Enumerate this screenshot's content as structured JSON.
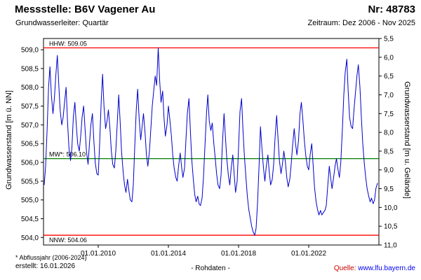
{
  "header": {
    "station_label": "Messstelle: B6V Vagener Au",
    "number_label": "Nr: 48783",
    "aquifer_label": "Grundwasserleiter: Quartär",
    "period_label": "Zeitraum: Dez 2006 - Nov 2025"
  },
  "footer": {
    "footnote": "* Abflussjahr (2006-2024)",
    "created": "erstellt: 16.01.2026",
    "data_type": "- Rohdaten -",
    "source_label": "Quelle:",
    "source_link": "www.lfu.bayern.de"
  },
  "colors": {
    "series": "#0000cc",
    "extreme_line": "#ff0000",
    "mean_line": "#008000",
    "source_label": "#cc0000",
    "link": "#0000ee"
  },
  "chart_data": {
    "type": "line",
    "title": "",
    "ylabel_left": "Grundwasserstand [m ü. NN]",
    "ylabel_right": "Grundwasserstand [m u. Gelände]",
    "x_range": [
      2006.88,
      2026.0
    ],
    "y_range": [
      503.8,
      509.3
    ],
    "x_ticks": [
      {
        "t": 2010.0,
        "label": "01.01.2010"
      },
      {
        "t": 2014.0,
        "label": "01.01.2014"
      },
      {
        "t": 2018.0,
        "label": "01.01.2018"
      },
      {
        "t": 2022.0,
        "label": "01.01.2022"
      }
    ],
    "y_left_ticks": [
      {
        "v": 504.0,
        "label": "504,0"
      },
      {
        "v": 504.5,
        "label": "504,5"
      },
      {
        "v": 505.0,
        "label": "505,0"
      },
      {
        "v": 505.5,
        "label": "505,5"
      },
      {
        "v": 506.0,
        "label": "506,0"
      },
      {
        "v": 506.5,
        "label": "506,5"
      },
      {
        "v": 507.0,
        "label": "507,0"
      },
      {
        "v": 507.5,
        "label": "507,5"
      },
      {
        "v": 508.0,
        "label": "508,0"
      },
      {
        "v": 508.5,
        "label": "508,5"
      },
      {
        "v": 509.0,
        "label": "509,0"
      }
    ],
    "y_right_ticks": [
      "5,5",
      "6,0",
      "6,5",
      "7,0",
      "7,5",
      "8,0",
      "8,5",
      "9,0",
      "9,5",
      "10,0",
      "10,5",
      "11,0"
    ],
    "reference_lines": [
      {
        "name": "HHW",
        "label": "HHW: 509.05",
        "value": 509.05,
        "color": "#ff0000",
        "label_position": "above"
      },
      {
        "name": "MW",
        "label": "MW*: 506.10",
        "value": 506.1,
        "color": "#008000",
        "label_position": "above"
      },
      {
        "name": "NNW",
        "label": "NNW: 504.06",
        "value": 504.06,
        "color": "#ff0000",
        "label_position": "below"
      }
    ],
    "series": [
      {
        "name": "Grundwasserstand Rohdaten",
        "color": "#0000cc",
        "points": [
          [
            2006.92,
            505.4
          ],
          [
            2007.0,
            505.9
          ],
          [
            2007.08,
            506.8
          ],
          [
            2007.17,
            508.0
          ],
          [
            2007.25,
            508.55
          ],
          [
            2007.33,
            507.8
          ],
          [
            2007.42,
            507.3
          ],
          [
            2007.5,
            507.7
          ],
          [
            2007.58,
            508.3
          ],
          [
            2007.67,
            508.85
          ],
          [
            2007.75,
            508.1
          ],
          [
            2007.83,
            507.4
          ],
          [
            2007.92,
            507.0
          ],
          [
            2008.0,
            507.2
          ],
          [
            2008.08,
            507.6
          ],
          [
            2008.17,
            508.0
          ],
          [
            2008.25,
            507.1
          ],
          [
            2008.33,
            506.4
          ],
          [
            2008.42,
            506.05
          ],
          [
            2008.5,
            506.4
          ],
          [
            2008.58,
            507.2
          ],
          [
            2008.67,
            507.6
          ],
          [
            2008.75,
            507.0
          ],
          [
            2008.83,
            506.5
          ],
          [
            2008.92,
            506.3
          ],
          [
            2009.0,
            506.7
          ],
          [
            2009.08,
            507.2
          ],
          [
            2009.17,
            507.5
          ],
          [
            2009.25,
            506.9
          ],
          [
            2009.33,
            506.3
          ],
          [
            2009.42,
            505.95
          ],
          [
            2009.5,
            506.5
          ],
          [
            2009.58,
            507.0
          ],
          [
            2009.67,
            507.3
          ],
          [
            2009.75,
            506.6
          ],
          [
            2009.83,
            506.0
          ],
          [
            2009.92,
            505.7
          ],
          [
            2010.0,
            505.66
          ],
          [
            2010.08,
            506.5
          ],
          [
            2010.17,
            507.6
          ],
          [
            2010.25,
            508.35
          ],
          [
            2010.33,
            507.5
          ],
          [
            2010.42,
            506.9
          ],
          [
            2010.5,
            507.1
          ],
          [
            2010.58,
            507.4
          ],
          [
            2010.67,
            506.9
          ],
          [
            2010.75,
            506.3
          ],
          [
            2010.83,
            505.95
          ],
          [
            2010.92,
            505.85
          ],
          [
            2011.0,
            506.3
          ],
          [
            2011.08,
            507.0
          ],
          [
            2011.17,
            507.8
          ],
          [
            2011.25,
            507.1
          ],
          [
            2011.33,
            506.3
          ],
          [
            2011.42,
            505.75
          ],
          [
            2011.5,
            505.4
          ],
          [
            2011.58,
            505.2
          ],
          [
            2011.67,
            505.55
          ],
          [
            2011.75,
            505.25
          ],
          [
            2011.83,
            505.0
          ],
          [
            2011.92,
            504.95
          ],
          [
            2012.0,
            505.4
          ],
          [
            2012.08,
            506.4
          ],
          [
            2012.17,
            507.4
          ],
          [
            2012.25,
            507.95
          ],
          [
            2012.33,
            507.2
          ],
          [
            2012.42,
            506.6
          ],
          [
            2012.5,
            506.95
          ],
          [
            2012.58,
            507.3
          ],
          [
            2012.67,
            506.8
          ],
          [
            2012.75,
            506.2
          ],
          [
            2012.83,
            505.9
          ],
          [
            2012.92,
            506.3
          ],
          [
            2013.0,
            506.9
          ],
          [
            2013.08,
            507.5
          ],
          [
            2013.17,
            507.95
          ],
          [
            2013.25,
            508.3
          ],
          [
            2013.33,
            508.05
          ],
          [
            2013.42,
            509.05
          ],
          [
            2013.5,
            508.2
          ],
          [
            2013.58,
            507.6
          ],
          [
            2013.67,
            507.9
          ],
          [
            2013.75,
            507.2
          ],
          [
            2013.83,
            506.7
          ],
          [
            2013.92,
            507.0
          ],
          [
            2014.0,
            507.5
          ],
          [
            2014.08,
            507.15
          ],
          [
            2014.17,
            506.7
          ],
          [
            2014.25,
            506.2
          ],
          [
            2014.33,
            505.85
          ],
          [
            2014.42,
            505.6
          ],
          [
            2014.5,
            505.5
          ],
          [
            2014.58,
            505.9
          ],
          [
            2014.67,
            506.25
          ],
          [
            2014.75,
            505.9
          ],
          [
            2014.83,
            505.6
          ],
          [
            2014.92,
            505.85
          ],
          [
            2015.0,
            506.6
          ],
          [
            2015.08,
            507.3
          ],
          [
            2015.17,
            507.7
          ],
          [
            2015.25,
            506.9
          ],
          [
            2015.33,
            506.1
          ],
          [
            2015.42,
            505.55
          ],
          [
            2015.5,
            505.15
          ],
          [
            2015.58,
            504.95
          ],
          [
            2015.67,
            505.1
          ],
          [
            2015.75,
            504.9
          ],
          [
            2015.83,
            504.85
          ],
          [
            2015.92,
            505.05
          ],
          [
            2016.0,
            505.6
          ],
          [
            2016.08,
            506.4
          ],
          [
            2016.17,
            507.3
          ],
          [
            2016.25,
            507.8
          ],
          [
            2016.33,
            507.1
          ],
          [
            2016.42,
            506.85
          ],
          [
            2016.5,
            507.05
          ],
          [
            2016.58,
            506.55
          ],
          [
            2016.67,
            506.1
          ],
          [
            2016.75,
            505.7
          ],
          [
            2016.83,
            505.4
          ],
          [
            2016.92,
            505.3
          ],
          [
            2017.0,
            505.65
          ],
          [
            2017.08,
            506.5
          ],
          [
            2017.17,
            507.3
          ],
          [
            2017.25,
            506.7
          ],
          [
            2017.33,
            506.1
          ],
          [
            2017.42,
            505.65
          ],
          [
            2017.5,
            505.4
          ],
          [
            2017.58,
            505.85
          ],
          [
            2017.67,
            506.2
          ],
          [
            2017.75,
            505.7
          ],
          [
            2017.83,
            505.2
          ],
          [
            2017.92,
            505.5
          ],
          [
            2018.0,
            506.4
          ],
          [
            2018.08,
            507.35
          ],
          [
            2018.17,
            507.7
          ],
          [
            2018.25,
            506.9
          ],
          [
            2018.33,
            506.2
          ],
          [
            2018.42,
            505.6
          ],
          [
            2018.5,
            505.1
          ],
          [
            2018.58,
            504.75
          ],
          [
            2018.67,
            504.5
          ],
          [
            2018.75,
            504.3
          ],
          [
            2018.83,
            504.15
          ],
          [
            2018.92,
            504.06
          ],
          [
            2019.0,
            504.25
          ],
          [
            2019.08,
            504.9
          ],
          [
            2019.17,
            505.95
          ],
          [
            2019.25,
            506.95
          ],
          [
            2019.33,
            506.4
          ],
          [
            2019.42,
            505.85
          ],
          [
            2019.5,
            505.5
          ],
          [
            2019.58,
            505.9
          ],
          [
            2019.67,
            506.2
          ],
          [
            2019.75,
            505.75
          ],
          [
            2019.83,
            505.4
          ],
          [
            2019.92,
            505.55
          ],
          [
            2020.0,
            505.95
          ],
          [
            2020.08,
            506.65
          ],
          [
            2020.17,
            507.25
          ],
          [
            2020.25,
            506.65
          ],
          [
            2020.33,
            506.05
          ],
          [
            2020.42,
            505.7
          ],
          [
            2020.5,
            505.95
          ],
          [
            2020.58,
            506.3
          ],
          [
            2020.67,
            506.0
          ],
          [
            2020.75,
            505.6
          ],
          [
            2020.83,
            505.35
          ],
          [
            2020.92,
            505.55
          ],
          [
            2021.0,
            505.95
          ],
          [
            2021.08,
            506.45
          ],
          [
            2021.17,
            506.9
          ],
          [
            2021.25,
            506.5
          ],
          [
            2021.33,
            506.2
          ],
          [
            2021.42,
            506.6
          ],
          [
            2021.5,
            507.3
          ],
          [
            2021.58,
            507.6
          ],
          [
            2021.67,
            507.1
          ],
          [
            2021.75,
            506.6
          ],
          [
            2021.83,
            506.2
          ],
          [
            2021.92,
            505.9
          ],
          [
            2022.0,
            505.8
          ],
          [
            2022.08,
            506.2
          ],
          [
            2022.17,
            506.5
          ],
          [
            2022.25,
            505.95
          ],
          [
            2022.33,
            505.35
          ],
          [
            2022.42,
            504.95
          ],
          [
            2022.5,
            504.75
          ],
          [
            2022.58,
            504.6
          ],
          [
            2022.67,
            504.72
          ],
          [
            2022.75,
            504.6
          ],
          [
            2022.83,
            504.66
          ],
          [
            2022.92,
            504.72
          ],
          [
            2023.0,
            504.85
          ],
          [
            2023.08,
            505.35
          ],
          [
            2023.17,
            505.9
          ],
          [
            2023.25,
            505.6
          ],
          [
            2023.33,
            505.3
          ],
          [
            2023.42,
            505.6
          ],
          [
            2023.5,
            505.9
          ],
          [
            2023.58,
            506.1
          ],
          [
            2023.67,
            505.8
          ],
          [
            2023.75,
            505.6
          ],
          [
            2023.83,
            506.0
          ],
          [
            2023.92,
            506.9
          ],
          [
            2024.0,
            507.8
          ],
          [
            2024.08,
            508.4
          ],
          [
            2024.17,
            508.75
          ],
          [
            2024.25,
            507.9
          ],
          [
            2024.33,
            507.2
          ],
          [
            2024.42,
            506.95
          ],
          [
            2024.5,
            506.9
          ],
          [
            2024.58,
            507.4
          ],
          [
            2024.67,
            507.9
          ],
          [
            2024.75,
            508.3
          ],
          [
            2024.83,
            508.6
          ],
          [
            2024.92,
            508.0
          ],
          [
            2025.0,
            507.2
          ],
          [
            2025.08,
            506.5
          ],
          [
            2025.17,
            505.95
          ],
          [
            2025.25,
            505.6
          ],
          [
            2025.33,
            505.3
          ],
          [
            2025.42,
            505.1
          ],
          [
            2025.5,
            504.95
          ],
          [
            2025.58,
            505.05
          ],
          [
            2025.67,
            504.9
          ],
          [
            2025.75,
            505.0
          ],
          [
            2025.83,
            505.3
          ],
          [
            2025.92,
            505.45
          ]
        ]
      }
    ]
  }
}
